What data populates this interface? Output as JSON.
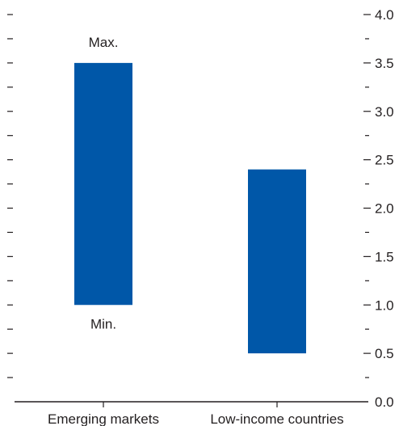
{
  "chart_data": {
    "type": "bar",
    "subtype": "floating-range",
    "categories": [
      "Emerging markets",
      "Low-income countries"
    ],
    "series": [
      {
        "ranges": [
          {
            "min": 1.0,
            "max": 3.5
          },
          {
            "min": 0.5,
            "max": 2.4
          }
        ]
      }
    ],
    "ylim": [
      0,
      4.0
    ],
    "y_tick_labels": [
      "0.0",
      "0.5",
      "1.0",
      "1.5",
      "2.0",
      "2.5",
      "3.0",
      "3.5",
      "4.0"
    ],
    "y_tick_values": [
      0,
      0.5,
      1.0,
      1.5,
      2.0,
      2.5,
      3.0,
      3.5,
      4.0
    ],
    "y_minor_step": 0.25,
    "y_axis_position": "right",
    "annotations": [
      {
        "text": "Max.",
        "category_index": 0,
        "placement": "above"
      },
      {
        "text": "Min.",
        "category_index": 0,
        "placement": "below"
      }
    ],
    "bar_color": "#0057a8",
    "grid": false,
    "title": "",
    "xlabel": "",
    "ylabel": ""
  }
}
